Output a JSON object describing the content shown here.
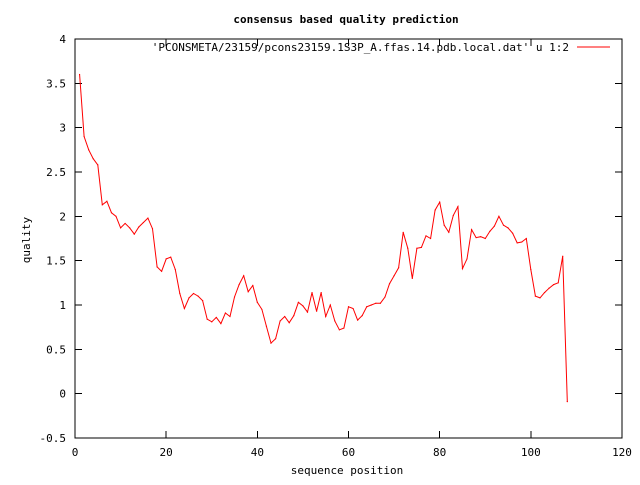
{
  "chart_data": {
    "type": "line",
    "title": "consensus based quality prediction",
    "xlabel": "sequence position",
    "ylabel": "quality",
    "xlim": [
      0,
      120
    ],
    "ylim": [
      -0.5,
      4
    ],
    "x_ticks": [
      0,
      20,
      40,
      60,
      80,
      100,
      120
    ],
    "y_ticks": [
      -0.5,
      0,
      0.5,
      1,
      1.5,
      2,
      2.5,
      3,
      3.5,
      4
    ],
    "x_tick_labels": [
      "0",
      "20",
      "40",
      "60",
      "80",
      "100",
      "120"
    ],
    "y_tick_labels": [
      "-0.5",
      "0",
      "0.5",
      "1",
      "1.5",
      "2",
      "2.5",
      "3",
      "3.5",
      "4"
    ],
    "grid": false,
    "legend_position": "top-right",
    "series": [
      {
        "name": "'PCONSMETA/23159/pcons23159.1S3P_A.ffas.14.pdb.local.dat' u 1:2",
        "color": "#ff0000",
        "x": [
          1,
          2,
          3,
          4,
          5,
          6,
          7,
          8,
          9,
          10,
          11,
          12,
          13,
          14,
          15,
          16,
          17,
          18,
          19,
          20,
          21,
          22,
          23,
          24,
          25,
          26,
          27,
          28,
          29,
          30,
          31,
          32,
          33,
          34,
          35,
          36,
          37,
          38,
          39,
          40,
          41,
          42,
          43,
          44,
          45,
          46,
          47,
          48,
          49,
          50,
          51,
          52,
          53,
          54,
          55,
          56,
          57,
          58,
          59,
          60,
          61,
          62,
          63,
          64,
          65,
          66,
          67,
          68,
          69,
          70,
          71,
          72,
          73,
          74,
          75,
          76,
          77,
          78,
          79,
          80,
          81,
          82,
          83,
          84,
          85,
          86,
          87,
          88,
          89,
          90,
          91,
          92,
          93,
          94,
          95,
          96,
          97,
          98,
          99,
          100,
          101,
          102,
          103,
          104,
          105,
          106,
          107,
          108
        ],
        "values": [
          3.6,
          2.9,
          2.75,
          2.65,
          2.58,
          2.13,
          2.17,
          2.04,
          2.0,
          1.87,
          1.92,
          1.87,
          1.8,
          1.88,
          1.93,
          1.98,
          1.86,
          1.43,
          1.38,
          1.52,
          1.54,
          1.4,
          1.13,
          0.96,
          1.08,
          1.13,
          1.1,
          1.05,
          0.84,
          0.81,
          0.86,
          0.79,
          0.91,
          0.87,
          1.09,
          1.23,
          1.33,
          1.15,
          1.22,
          1.03,
          0.95,
          0.76,
          0.57,
          0.62,
          0.82,
          0.87,
          0.8,
          0.88,
          1.03,
          0.99,
          0.92,
          1.14,
          0.93,
          1.14,
          0.87,
          1.0,
          0.82,
          0.72,
          0.74,
          0.98,
          0.96,
          0.83,
          0.88,
          0.98,
          1.0,
          1.02,
          1.02,
          1.09,
          1.24,
          1.33,
          1.42,
          1.82,
          1.64,
          1.3,
          1.64,
          1.65,
          1.78,
          1.75,
          2.07,
          2.16,
          1.9,
          1.82,
          2.01,
          2.11,
          1.41,
          1.52,
          1.85,
          1.76,
          1.77,
          1.75,
          1.83,
          1.89,
          2.0,
          1.9,
          1.87,
          1.81,
          1.7,
          1.71,
          1.75,
          1.4,
          1.1,
          1.08,
          1.14,
          1.19,
          1.23,
          1.25,
          1.55,
          -0.09
        ]
      }
    ]
  }
}
